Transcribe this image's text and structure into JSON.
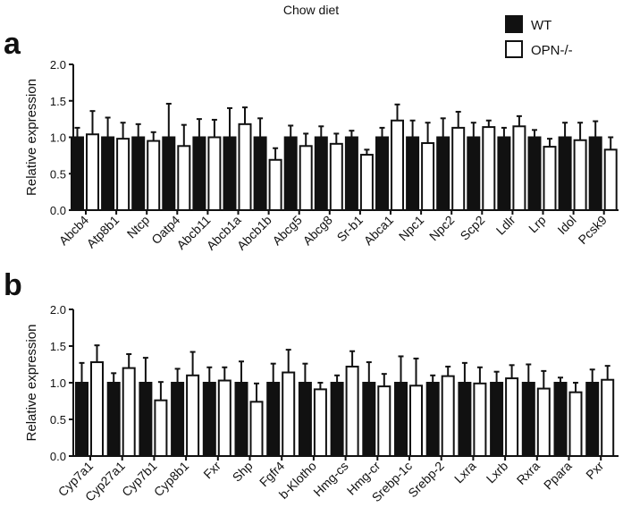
{
  "title": "Chow diet",
  "legend": {
    "placement": "top-right",
    "items": [
      {
        "name": "WT",
        "color": "#111111"
      },
      {
        "name": "OPN-/-",
        "color": "#ffffff"
      }
    ]
  },
  "chart_data": [
    {
      "panel": "a",
      "type": "bar",
      "ylabel": "Relative expression",
      "ylim": [
        0,
        2.0
      ],
      "yticks": [
        "0.0",
        "0.5",
        "1.0",
        "1.5",
        "2.0"
      ],
      "categories": [
        "Abcb4",
        "Atp8b1",
        "Ntcp",
        "Oatp4",
        "Abcb11",
        "Abcb1a",
        "Abcb1b",
        "Abcg5",
        "Abcg8",
        "Sr-b1",
        "Abca1",
        "Npc1",
        "Npc2",
        "Scp2",
        "Ldlr",
        "Lrp",
        "Idol",
        "Pcsk9"
      ],
      "series": [
        {
          "name": "WT",
          "values": [
            1,
            1,
            1,
            1,
            1,
            1,
            1,
            1,
            1,
            1,
            1,
            1,
            1,
            1,
            1,
            1,
            1,
            1
          ],
          "error_upper": [
            1.13,
            1.27,
            1.18,
            1.46,
            1.25,
            1.4,
            1.26,
            1.16,
            1.15,
            1.09,
            1.13,
            1.23,
            1.26,
            1.2,
            1.13,
            1.1,
            1.2,
            1.22
          ]
        },
        {
          "name": "OPN-/-",
          "values": [
            1.04,
            0.98,
            0.95,
            0.88,
            1.0,
            1.18,
            0.69,
            0.88,
            0.91,
            0.76,
            1.23,
            0.92,
            1.13,
            1.14,
            1.15,
            0.87,
            0.96,
            0.83
          ],
          "error_upper": [
            1.36,
            1.2,
            1.07,
            1.17,
            1.24,
            1.41,
            0.85,
            1.05,
            1.05,
            0.83,
            1.45,
            1.2,
            1.35,
            1.23,
            1.29,
            0.98,
            1.2,
            1.0
          ]
        }
      ]
    },
    {
      "panel": "b",
      "type": "bar",
      "ylabel": "Relative expression",
      "ylim": [
        0,
        2.0
      ],
      "yticks": [
        "0.0",
        "0.5",
        "1.0",
        "1.5",
        "2.0"
      ],
      "categories": [
        "Cyp7a1",
        "Cyp27a1",
        "Cyp7b1",
        "Cyp8b1",
        "Fxr",
        "Shp",
        "Fgfr4",
        "b-Klotho",
        "Hmg-cs",
        "Hmg-cr",
        "Srebp-1c",
        "Srebp-2",
        "Lxra",
        "Lxrb",
        "Rxra",
        "Ppara",
        "Pxr"
      ],
      "series": [
        {
          "name": "WT",
          "values": [
            1,
            1,
            1,
            1,
            1,
            1,
            1,
            1,
            1,
            1,
            1,
            1,
            1,
            1,
            1,
            1,
            1
          ],
          "error_upper": [
            1.27,
            1.13,
            1.34,
            1.19,
            1.21,
            1.29,
            1.26,
            1.26,
            1.1,
            1.28,
            1.36,
            1.1,
            1.27,
            1.15,
            1.25,
            1.07,
            1.18
          ]
        },
        {
          "name": "OPN-/-",
          "values": [
            1.28,
            1.2,
            0.76,
            1.1,
            1.03,
            0.74,
            1.14,
            0.91,
            1.22,
            0.95,
            0.96,
            1.09,
            0.99,
            1.06,
            0.92,
            0.87,
            1.04
          ],
          "error_upper": [
            1.51,
            1.39,
            1.01,
            1.42,
            1.21,
            0.99,
            1.45,
            1.0,
            1.43,
            1.12,
            1.33,
            1.22,
            1.21,
            1.24,
            1.16,
            1.0,
            1.23
          ]
        }
      ]
    }
  ]
}
